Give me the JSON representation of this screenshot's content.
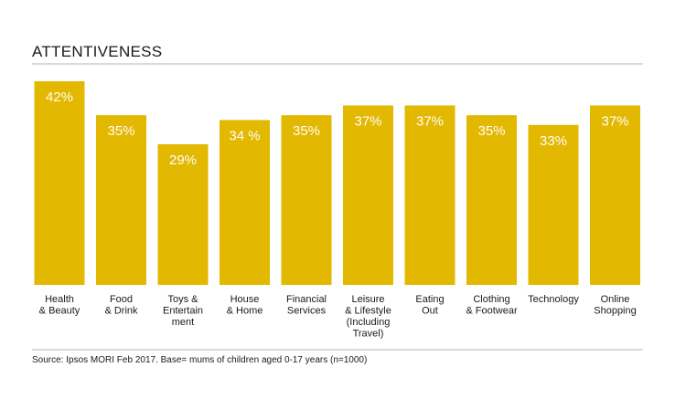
{
  "chart_data": {
    "type": "bar",
    "title": "ATTENTIVENESS",
    "categories": [
      [
        "Health",
        "& Beauty"
      ],
      [
        "Food",
        "& Drink"
      ],
      [
        "Toys &",
        "Entertain",
        "ment"
      ],
      [
        "House",
        "& Home"
      ],
      [
        "Financial",
        "Services"
      ],
      [
        "Leisure",
        "& Lifestyle",
        "(Including",
        "Travel)"
      ],
      [
        "Eating",
        "Out"
      ],
      [
        "Clothing",
        "& Footwear"
      ],
      [
        "Technology"
      ],
      [
        "Online",
        "Shopping"
      ]
    ],
    "values": [
      42,
      35,
      29,
      34,
      35,
      37,
      37,
      35,
      33,
      37
    ],
    "data_labels": [
      "42%",
      "35%",
      "29%",
      "34 %",
      "35%",
      "37%",
      "37%",
      "35%",
      "33%",
      "37%"
    ],
    "unit": "%",
    "ylim": [
      0,
      42
    ],
    "grid": false,
    "legend": "none",
    "bar_color": "#e2b800",
    "rule_color": "#b5b5b5",
    "source": "Source: Ipsos MORI Feb 2017. Base= mums of children aged 0-17 years (n=1000)"
  }
}
